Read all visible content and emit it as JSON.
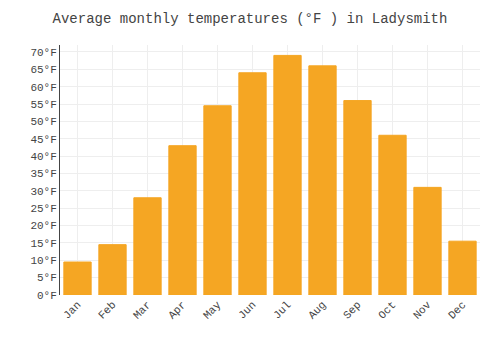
{
  "chart_data": {
    "type": "bar",
    "title": "Average monthly temperatures (°F ) in Ladysmith",
    "categories": [
      "Jan",
      "Feb",
      "Mar",
      "Apr",
      "May",
      "Jun",
      "Jul",
      "Aug",
      "Sep",
      "Oct",
      "Nov",
      "Dec"
    ],
    "values": [
      9.5,
      14.5,
      28.0,
      43.0,
      54.5,
      64.0,
      69.0,
      66.0,
      56.0,
      46.0,
      31.0,
      15.5
    ],
    "color": "#F5A623",
    "ylim": [
      0,
      72
    ],
    "yticks": [
      {
        "value": 0,
        "label": "0°F"
      },
      {
        "value": 5,
        "label": "5°F"
      },
      {
        "value": 10,
        "label": "10°F"
      },
      {
        "value": 15,
        "label": "15°F"
      },
      {
        "value": 20,
        "label": "20°F"
      },
      {
        "value": 25,
        "label": "25°F"
      },
      {
        "value": 30,
        "label": "30°F"
      },
      {
        "value": 35,
        "label": "35°F"
      },
      {
        "value": 40,
        "label": "40°F"
      },
      {
        "value": 45,
        "label": "45°F"
      },
      {
        "value": 50,
        "label": "50°F"
      },
      {
        "value": 55,
        "label": "55°F"
      },
      {
        "value": 60,
        "label": "60°F"
      },
      {
        "value": 65,
        "label": "65°F"
      },
      {
        "value": 70,
        "label": "70°F"
      }
    ],
    "grid": true
  }
}
